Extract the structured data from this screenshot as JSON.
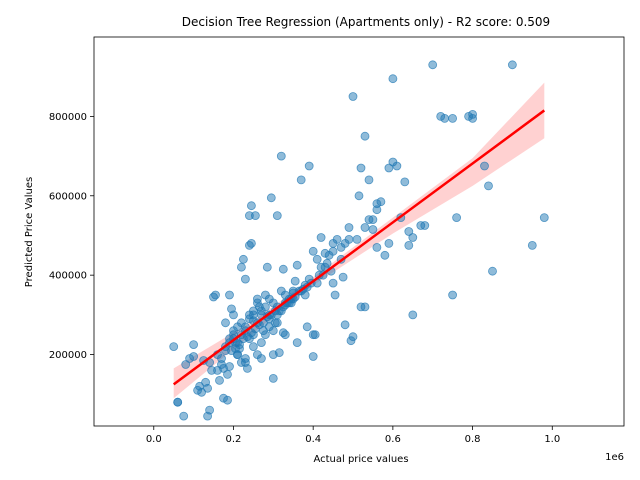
{
  "chart_data": {
    "type": "scatter",
    "title": "Decision Tree Regression (Apartments only) - R2 score: 0.509",
    "xlabel": "Actual price values",
    "ylabel": "Predicted Price Values",
    "x_offset_label": "1e6",
    "xlim": [
      -150000,
      1180000
    ],
    "ylim": [
      20000,
      1000000
    ],
    "x_ticks": [
      0,
      200000,
      400000,
      600000,
      800000,
      1000000
    ],
    "x_tick_labels": [
      "0.0",
      "0.2",
      "0.4",
      "0.6",
      "0.8",
      "1.0"
    ],
    "y_ticks": [
      200000,
      400000,
      600000,
      800000
    ],
    "y_tick_labels": [
      "200000",
      "400000",
      "600000",
      "800000"
    ],
    "grid": false,
    "colors": {
      "points": "#1f77b4",
      "regression_line": "#ff0000",
      "confidence_band": "#ff9999"
    },
    "regression_line": {
      "x": [
        50000,
        980000
      ],
      "y": [
        125000,
        815000
      ]
    },
    "confidence_band": {
      "x": [
        50000,
        250000,
        400000,
        600000,
        800000,
        980000
      ],
      "lower": [
        90000,
        255000,
        375000,
        505000,
        625000,
        745000
      ],
      "upper": [
        165000,
        285000,
        395000,
        545000,
        695000,
        885000
      ]
    },
    "points": {
      "x": [
        50000,
        60000,
        75000,
        90000,
        100000,
        115000,
        120000,
        130000,
        135000,
        140000,
        150000,
        155000,
        160000,
        170000,
        175000,
        180000,
        185000,
        190000,
        195000,
        200000,
        200000,
        205000,
        210000,
        215000,
        220000,
        225000,
        230000,
        235000,
        240000,
        245000,
        250000,
        255000,
        260000,
        265000,
        270000,
        275000,
        280000,
        285000,
        290000,
        295000,
        300000,
        305000,
        310000,
        315000,
        320000,
        325000,
        330000,
        340000,
        345000,
        350000,
        355000,
        360000,
        370000,
        380000,
        390000,
        400000,
        410000,
        420000,
        430000,
        440000,
        450000,
        460000,
        470000,
        480000,
        490000,
        500000,
        510000,
        520000,
        530000,
        540000,
        550000,
        560000,
        580000,
        590000,
        600000,
        620000,
        630000,
        640000,
        650000,
        670000,
        700000,
        730000,
        750000,
        760000,
        790000,
        800000,
        830000,
        840000,
        850000,
        900000,
        950000,
        980000,
        320000,
        325000,
        380000,
        385000,
        400000,
        420000,
        500000,
        540000,
        140000,
        160000,
        180000,
        190000,
        200000,
        210000,
        220000,
        230000,
        240000,
        250000,
        260000,
        270000,
        280000,
        290000,
        300000,
        310000,
        320000,
        330000,
        340000,
        350000,
        170000,
        180000,
        190000,
        200000,
        210000,
        220000,
        230000,
        240000,
        250000,
        260000,
        270000,
        280000,
        290000,
        300000,
        310000,
        220000,
        230000,
        240000,
        250000,
        260000,
        190000,
        210000,
        230000,
        250000,
        270000,
        290000,
        310000,
        330000,
        350000,
        370000,
        390000,
        410000,
        430000,
        450000,
        470000,
        490000,
        520000,
        560000,
        600000,
        640000,
        80000,
        100000,
        110000,
        125000,
        145000,
        165000,
        185000,
        205000,
        225000,
        245000,
        265000,
        285000,
        305000,
        325000,
        345000,
        365000,
        385000,
        405000,
        425000,
        445000,
        60000,
        135000,
        175000,
        195000,
        215000,
        235000,
        255000,
        275000,
        295000,
        315000,
        335000,
        355000,
        375000,
        395000,
        415000,
        435000,
        455000,
        475000,
        495000,
        515000,
        530000,
        550000,
        570000,
        590000,
        610000,
        650000,
        680000,
        720000,
        750000,
        800000,
        240000,
        245000,
        300000,
        330000,
        360000,
        400000,
        450000,
        480000,
        530000,
        560000
      ],
      "y": [
        220000,
        80000,
        45000,
        190000,
        225000,
        120000,
        105000,
        130000,
        45000,
        60000,
        345000,
        350000,
        160000,
        175000,
        90000,
        280000,
        85000,
        350000,
        315000,
        300000,
        240000,
        230000,
        200000,
        215000,
        420000,
        440000,
        390000,
        165000,
        475000,
        575000,
        250000,
        550000,
        340000,
        320000,
        190000,
        260000,
        350000,
        420000,
        300000,
        595000,
        140000,
        280000,
        550000,
        205000,
        700000,
        415000,
        250000,
        330000,
        340000,
        360000,
        385000,
        425000,
        640000,
        375000,
        675000,
        460000,
        440000,
        495000,
        455000,
        450000,
        460000,
        490000,
        470000,
        480000,
        520000,
        245000,
        490000,
        670000,
        750000,
        540000,
        540000,
        565000,
        450000,
        670000,
        685000,
        545000,
        635000,
        510000,
        495000,
        525000,
        930000,
        795000,
        795000,
        545000,
        800000,
        795000,
        675000,
        625000,
        410000,
        930000,
        475000,
        545000,
        360000,
        255000,
        350000,
        270000,
        195000,
        420000,
        850000,
        640000,
        180000,
        200000,
        220000,
        240000,
        260000,
        230000,
        250000,
        270000,
        290000,
        300000,
        280000,
        310000,
        320000,
        290000,
        330000,
        300000,
        310000,
        350000,
        340000,
        355000,
        190000,
        210000,
        230000,
        250000,
        270000,
        280000,
        260000,
        240000,
        220000,
        200000,
        230000,
        250000,
        270000,
        260000,
        280000,
        180000,
        190000,
        300000,
        310000,
        330000,
        170000,
        200000,
        180000,
        285000,
        300000,
        340000,
        320000,
        330000,
        340000,
        360000,
        390000,
        380000,
        420000,
        480000,
        440000,
        490000,
        320000,
        580000,
        895000,
        475000,
        175000,
        195000,
        110000,
        185000,
        160000,
        135000,
        150000,
        215000,
        240000,
        255000,
        275000,
        295000,
        310000,
        320000,
        330000,
        360000,
        370000,
        250000,
        400000,
        410000,
        80000,
        115000,
        165000,
        210000,
        225000,
        245000,
        265000,
        280000,
        300000,
        310000,
        330000,
        345000,
        365000,
        380000,
        400000,
        430000,
        350000,
        395000,
        235000,
        600000,
        520000,
        515000,
        585000,
        480000,
        675000,
        300000,
        525000,
        800000,
        350000,
        805000,
        550000,
        480000,
        200000,
        325000,
        230000,
        250000,
        380000,
        275000,
        320000,
        470000
      ]
    }
  }
}
